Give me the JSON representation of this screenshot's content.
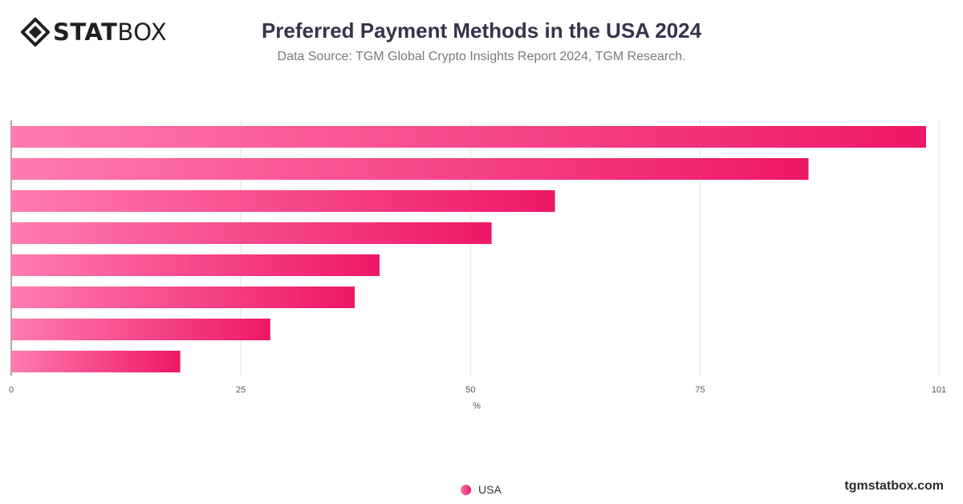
{
  "brand": {
    "logo_bold": "STAT",
    "logo_light": "BOX",
    "site": "tgmstatbox.com"
  },
  "header": {
    "title": "Preferred Payment Methods in the USA 2024",
    "subtitle": "Data Source: TGM Global Crypto Insights Report 2024, TGM Research."
  },
  "chart_data": {
    "type": "bar",
    "orientation": "horizontal",
    "categories": [
      "",
      "",
      "",
      "",
      "",
      "",
      "",
      ""
    ],
    "series": [
      {
        "name": "USA",
        "values": [
          99.6,
          86.8,
          59.2,
          52.3,
          40.1,
          37.4,
          28.2,
          18.4
        ]
      }
    ],
    "xlabel": "%",
    "xlim": [
      0,
      101
    ],
    "ticks": [
      0,
      25,
      50,
      75,
      101
    ],
    "grid": true,
    "legend": "bottom-center",
    "colors": {
      "bar_start": "#ff7bb0",
      "bar_end": "#ee1766",
      "grid": "#e3e3e3",
      "axis": "#555555"
    }
  },
  "legend": {
    "label": "USA"
  }
}
